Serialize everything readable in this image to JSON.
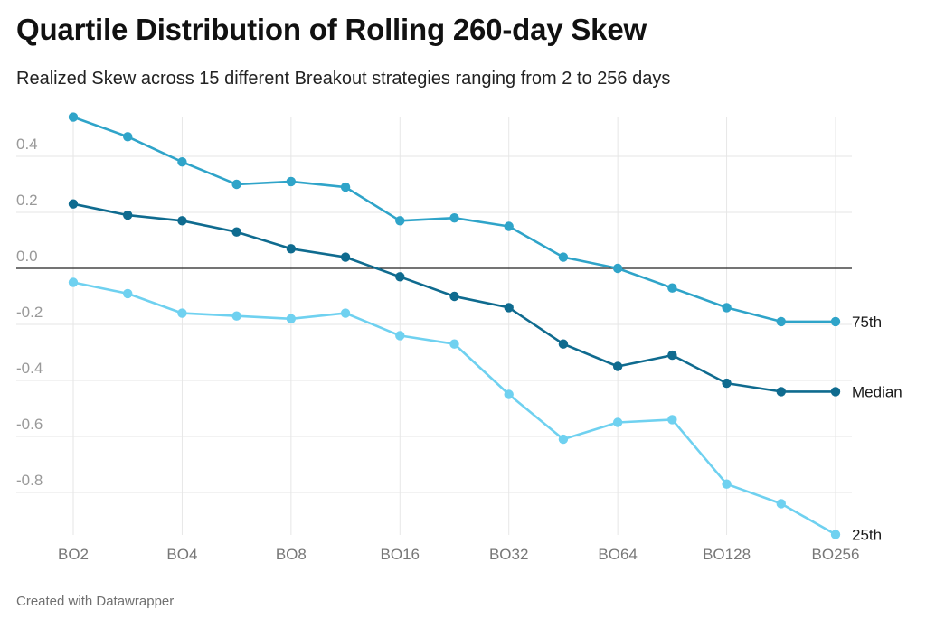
{
  "header": {
    "title": "Quartile Distribution of Rolling 260-day Skew",
    "subtitle": "Realized Skew across 15 different Breakout strategies ranging from 2 to 256 days"
  },
  "footer": {
    "credit": "Created with Datawrapper"
  },
  "chart_data": {
    "type": "line",
    "title": "Quartile Distribution of Rolling 260-day Skew",
    "subtitle": "Realized Skew across 15 different Breakout strategies ranging from 2 to 256 days",
    "xlabel": "",
    "ylabel": "",
    "x_count": 15,
    "x_tick_labels": [
      {
        "index": 0,
        "label": "BO2"
      },
      {
        "index": 2,
        "label": "BO4"
      },
      {
        "index": 4,
        "label": "BO8"
      },
      {
        "index": 6,
        "label": "BO16"
      },
      {
        "index": 8,
        "label": "BO32"
      },
      {
        "index": 10,
        "label": "BO64"
      },
      {
        "index": 12,
        "label": "BO128"
      },
      {
        "index": 14,
        "label": "BO256"
      }
    ],
    "y_ticks": [
      {
        "value": 0.4,
        "label": "0.4"
      },
      {
        "value": 0.2,
        "label": "0.2"
      },
      {
        "value": 0.0,
        "label": "0.0"
      },
      {
        "value": -0.2,
        "label": "-0.2"
      },
      {
        "value": -0.4,
        "label": "-0.4"
      },
      {
        "value": -0.6,
        "label": "-0.6"
      },
      {
        "value": -0.8,
        "label": "-0.8"
      }
    ],
    "ylim": [
      -0.95,
      0.55
    ],
    "grid": true,
    "legend": "direct labels at line ends",
    "series": [
      {
        "name": "75th",
        "color": "#2fa4c9",
        "values": [
          0.54,
          0.47,
          0.38,
          0.3,
          0.31,
          0.29,
          0.17,
          0.18,
          0.15,
          0.04,
          0.0,
          -0.07,
          -0.14,
          -0.19,
          -0.19
        ]
      },
      {
        "name": "Median",
        "color": "#0f6b8f",
        "values": [
          0.23,
          0.19,
          0.17,
          0.13,
          0.07,
          0.04,
          -0.03,
          -0.1,
          -0.14,
          -0.27,
          -0.35,
          -0.31,
          -0.41,
          -0.44,
          -0.44
        ]
      },
      {
        "name": "25th",
        "color": "#6fd1f0",
        "values": [
          -0.05,
          -0.09,
          -0.16,
          -0.17,
          -0.18,
          -0.16,
          -0.24,
          -0.27,
          -0.45,
          -0.61,
          -0.55,
          -0.54,
          -0.77,
          -0.84,
          -0.95
        ]
      }
    ]
  }
}
